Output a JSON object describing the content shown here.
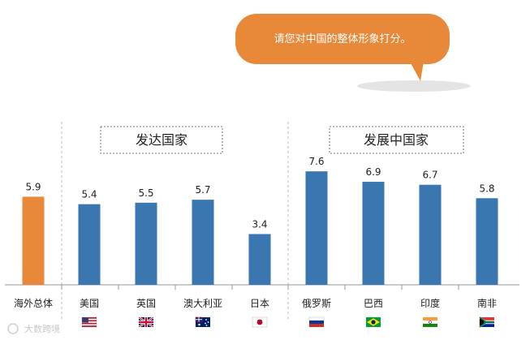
{
  "bubble": {
    "text": "请您对中国的整体形象打分。",
    "color": "#e8893a"
  },
  "groups": [
    {
      "label": "发达国家"
    },
    {
      "label": "发展中国家"
    }
  ],
  "flags": [
    "us-flag",
    "uk-flag",
    "australia-flag",
    "japan-flag",
    "russia-flag",
    "brazil-flag",
    "india-flag",
    "south-africa-flag"
  ],
  "watermark": "大数跨境",
  "chart_data": {
    "type": "bar",
    "title": "",
    "xlabel": "",
    "ylabel": "",
    "ylim": [
      0,
      8
    ],
    "grid": false,
    "categories": [
      "海外总体",
      "美国",
      "英国",
      "澳大利亚",
      "日本",
      "俄罗斯",
      "巴西",
      "印度",
      "南非"
    ],
    "values": [
      5.9,
      5.4,
      5.5,
      5.7,
      3.4,
      7.6,
      6.9,
      6.7,
      5.8
    ],
    "value_labels": [
      "5.9",
      "5.4",
      "5.5",
      "5.7",
      "3.4",
      "7.6",
      "6.9",
      "6.7",
      "5.8"
    ],
    "colors": [
      "#e8893a",
      "#3a76b0",
      "#3a76b0",
      "#3a76b0",
      "#3a76b0",
      "#3a76b0",
      "#3a76b0",
      "#3a76b0",
      "#3a76b0"
    ]
  }
}
